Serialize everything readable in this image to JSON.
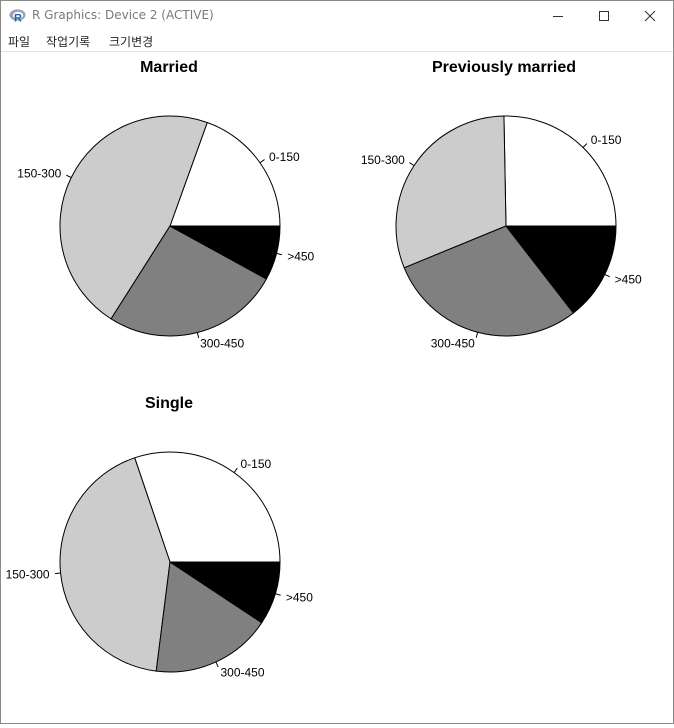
{
  "window": {
    "title": "R Graphics: Device 2 (ACTIVE)",
    "menu": [
      "파일",
      "작업기록",
      "크기변경"
    ]
  },
  "chart_data": [
    {
      "type": "pie",
      "title": "Married",
      "categories": [
        "0-150",
        "150-300",
        "300-450",
        ">450"
      ],
      "values": [
        19.5,
        46.5,
        26.0,
        8.0
      ],
      "colors": [
        "#FFFFFF",
        "#CCCCCC",
        "#808080",
        "#000000"
      ]
    },
    {
      "type": "pie",
      "title": "Previously married",
      "categories": [
        "0-150",
        "150-300",
        "300-450",
        ">450"
      ],
      "values": [
        25.3,
        30.9,
        29.3,
        14.5
      ],
      "colors": [
        "#FFFFFF",
        "#CCCCCC",
        "#808080",
        "#000000"
      ]
    },
    {
      "type": "pie",
      "title": "Single",
      "categories": [
        "0-150",
        "150-300",
        "300-450",
        ">450"
      ],
      "values": [
        30.2,
        42.8,
        17.7,
        9.3
      ],
      "colors": [
        "#FFFFFF",
        "#CCCCCC",
        "#808080",
        "#000000"
      ]
    }
  ]
}
